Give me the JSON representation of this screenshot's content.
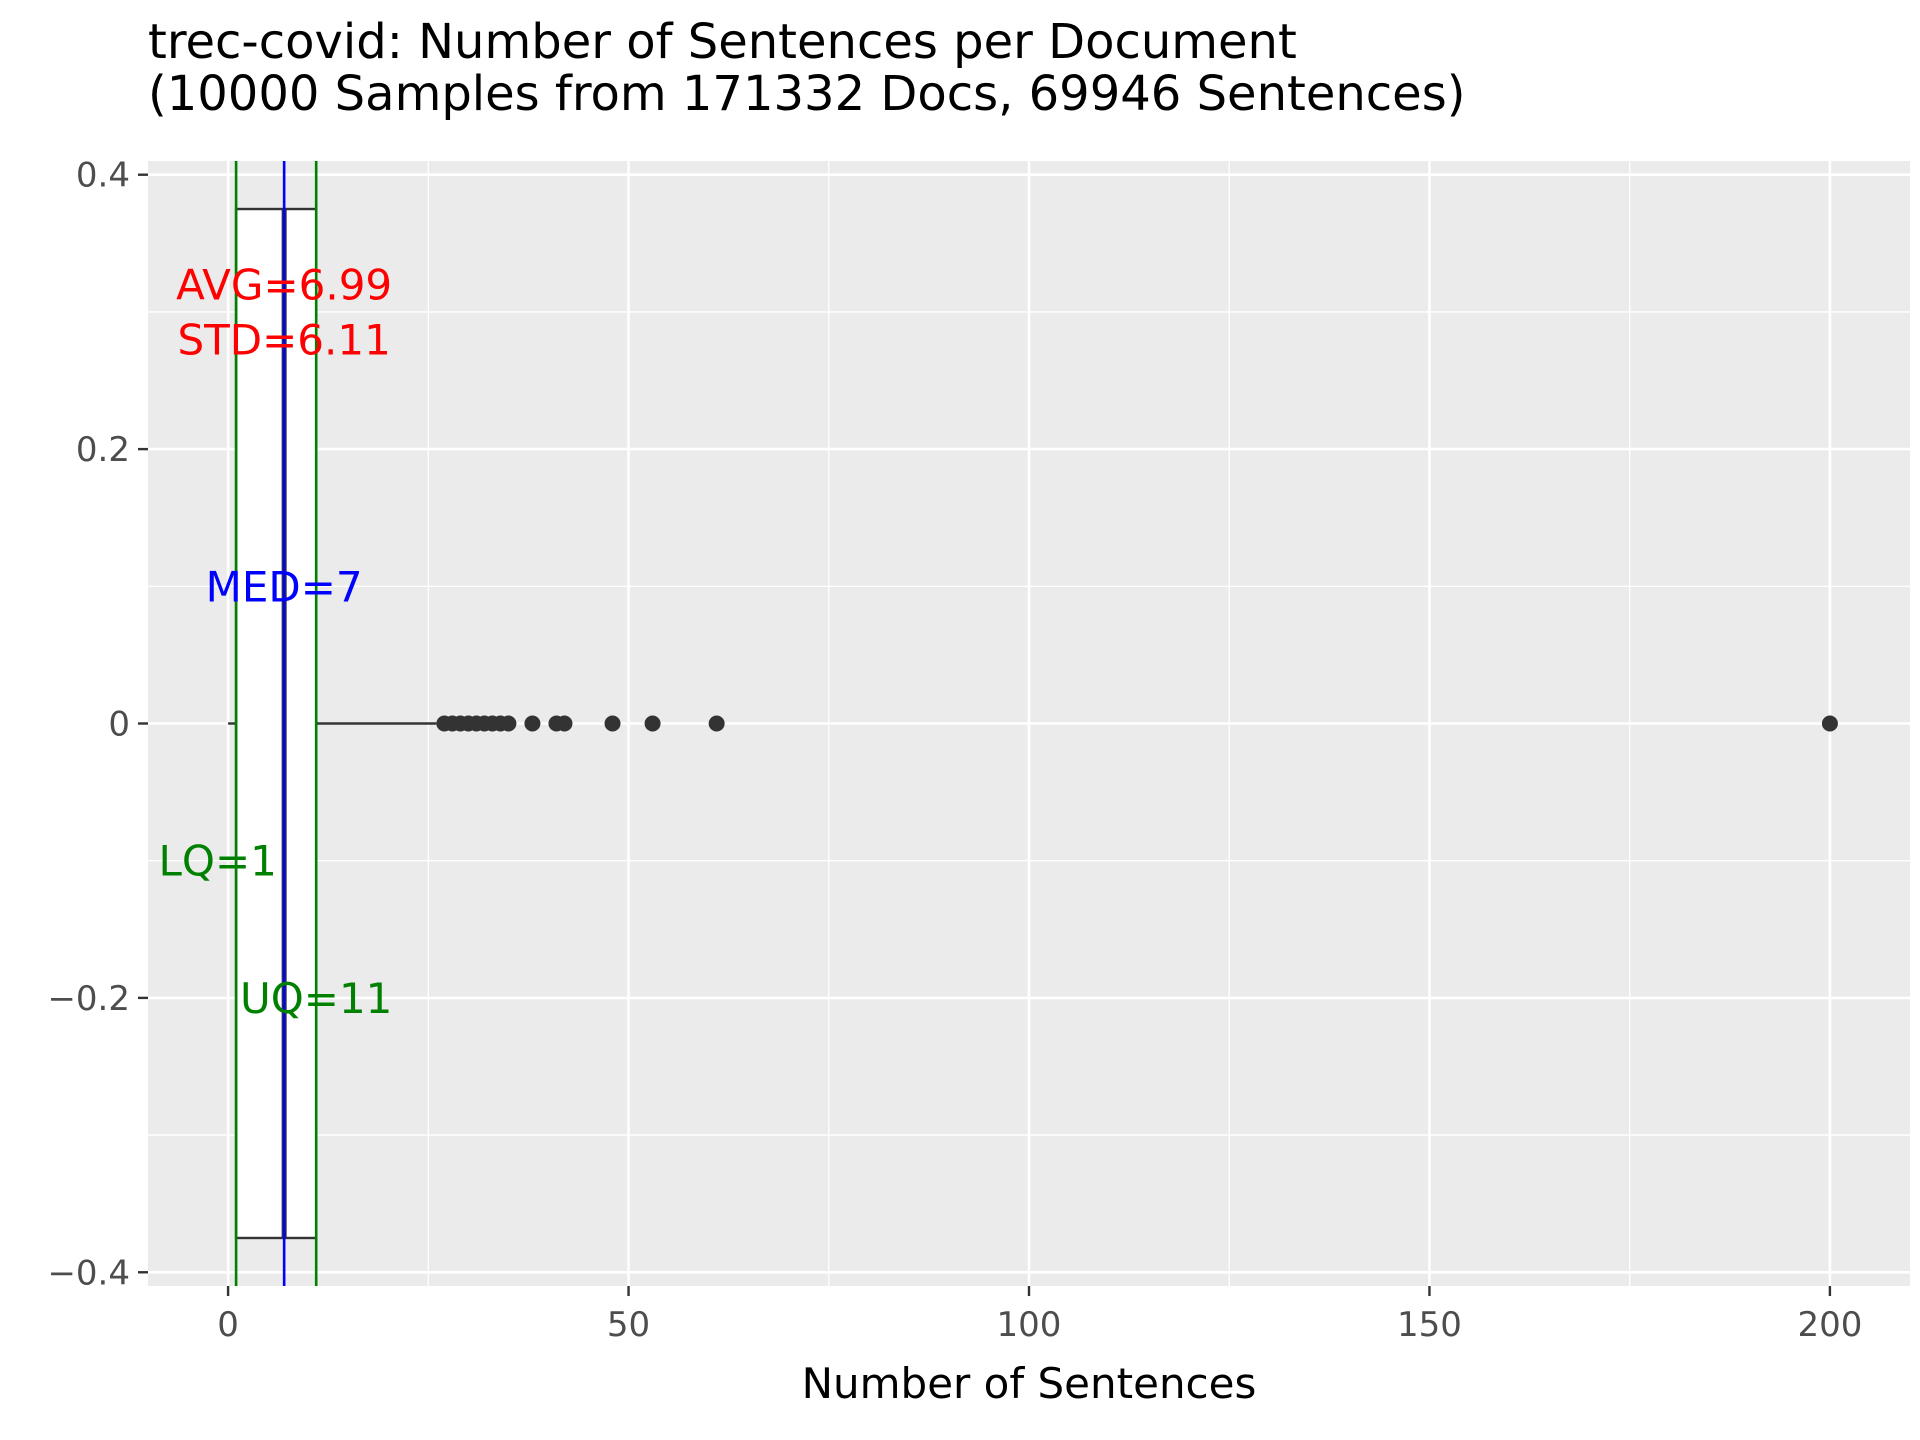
{
  "chart_data": {
    "type": "box",
    "title_line1": "trec-covid: Number of Sentences per Document",
    "title_line2": "(10000 Samples from 171332 Docs, 69946 Sentences)",
    "xlabel": "Number of Sentences",
    "ylabel": "",
    "xlim": [
      -10,
      210
    ],
    "ylim": [
      -0.41,
      0.41
    ],
    "x_ticks": [
      {
        "value": 0,
        "label": "0"
      },
      {
        "value": 50,
        "label": "50"
      },
      {
        "value": 100,
        "label": "100"
      },
      {
        "value": 150,
        "label": "150"
      },
      {
        "value": 200,
        "label": "200"
      }
    ],
    "y_ticks": [
      {
        "value": 0.4,
        "label": "0.4"
      },
      {
        "value": 0.2,
        "label": "0.2"
      },
      {
        "value": 0,
        "label": "0"
      },
      {
        "value": -0.2,
        "label": "−0.2"
      },
      {
        "value": -0.4,
        "label": "−0.4"
      }
    ],
    "grid": true,
    "box": {
      "q1": 1,
      "median": 7,
      "q3": 11,
      "whisker_low": 0,
      "whisker_high": 26,
      "half_width": 0.375,
      "fill": "#ffffff",
      "stroke": "#333333"
    },
    "outliers": [
      27,
      28,
      29,
      30,
      31,
      32,
      33,
      34,
      35,
      38,
      41,
      42,
      48,
      53,
      61,
      200
    ],
    "reference_lines": [
      {
        "name": "LQ",
        "value": 1,
        "color": "#008000"
      },
      {
        "name": "MED",
        "value": 7,
        "color": "#0000ff"
      },
      {
        "name": "UQ",
        "value": 11,
        "color": "#008000"
      }
    ],
    "annotations": [
      {
        "id": "avg",
        "text": "AVG=6.99",
        "x": 7,
        "y": 0.32,
        "color": "#ff0000"
      },
      {
        "id": "std",
        "text": "STD=6.11",
        "x": 7,
        "y": 0.28,
        "color": "#ff0000"
      },
      {
        "id": "med",
        "text": "MED=7",
        "x": 7,
        "y": 0.1,
        "color": "#0000ff"
      },
      {
        "id": "lq",
        "text": "LQ=1",
        "x": -1.3,
        "y": -0.1,
        "color": "#008000"
      },
      {
        "id": "uq",
        "text": "UQ=11",
        "x": 11,
        "y": -0.2,
        "color": "#008000"
      }
    ],
    "colors": {
      "panel": "#ebebeb",
      "grid_major": "#ffffff",
      "outlier": "#333333",
      "tick_text": "#4d4d4d",
      "title_text": "#000000"
    }
  }
}
